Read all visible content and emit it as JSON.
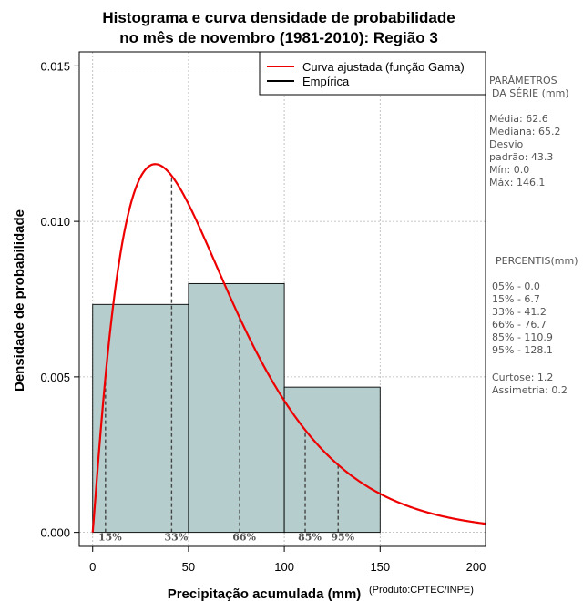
{
  "chart_data": {
    "type": "histogram",
    "title_line1": "Histograma e curva densidade de probabilidade",
    "title_line2": "no mês de novembro (1981-2010): Região 3",
    "xlabel": "Precipitação acumulada (mm)",
    "ylabel": "Densidade de probabilidade",
    "credit": "(Produto:CPTEC/INPE)",
    "xlim": [
      -7,
      205
    ],
    "ylim": [
      -0.00045,
      0.01545
    ],
    "x_ticks": [
      0,
      50,
      100,
      150,
      200
    ],
    "y_ticks": [
      0.0,
      0.005,
      0.01,
      0.015
    ],
    "y_tick_labels": [
      "0.000",
      "0.005",
      "0.010",
      "0.015"
    ],
    "x_tick_labels": [
      "0",
      "50",
      "100",
      "150",
      "200"
    ],
    "grid": true,
    "bins": [
      {
        "from": 0,
        "to": 50,
        "density": 0.00733
      },
      {
        "from": 50,
        "to": 100,
        "density": 0.008
      },
      {
        "from": 100,
        "to": 150,
        "density": 0.00467
      }
    ],
    "bar_color": "#b5cdcd",
    "curve_color": "#ee0000",
    "gamma_fit": {
      "shape": 2.09,
      "scale": 29.95
    },
    "percentile_markers": [
      {
        "label": "15%",
        "x": 6.7
      },
      {
        "label": "33%",
        "x": 41.2
      },
      {
        "label": "66%",
        "x": 76.7
      },
      {
        "label": "85%",
        "x": 110.9
      },
      {
        "label": "95%",
        "x": 128.1
      }
    ],
    "legend": {
      "position": "top-right",
      "entries": [
        {
          "label": "Curva ajustada (função Gama)",
          "color": "#ee0000"
        },
        {
          "label": "Empírica",
          "color": "#000000"
        }
      ]
    }
  },
  "side_panel": {
    "params_heading_1": "PARÂMETROS",
    "params_heading_2": "DA SÉRIE (mm)",
    "media": "Média:  62.6",
    "mediana": "Mediana:  65.2",
    "desvio_1": "Desvio",
    "desvio_2": "padrão:  43.3",
    "min": "Mín:  0.0",
    "max": "Máx:  146.1",
    "percentis_heading": "PERCENTIS(mm)",
    "p05": "05% -   0.0",
    "p15": "15% -   6.7",
    "p33": "33% -  41.2",
    "p66": "66% -  76.7",
    "p85": "85% -  110.9",
    "p95": "95% -  128.1",
    "curtose": "Curtose:  1.2",
    "assimetria": "Assimetria:  0.2"
  }
}
